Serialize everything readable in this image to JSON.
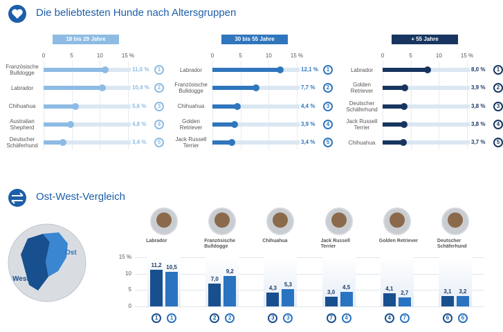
{
  "header": {
    "title": "Die beliebtesten Hunde nach Altersgruppen"
  },
  "chart_data": [
    {
      "type": "hbar",
      "title": "18 bis 29 Jahre",
      "color": "#8dbbe3",
      "categories": [
        "Französische Bulldogge",
        "Labrador",
        "Chihuahua",
        "Australian Shepherd",
        "Deutscher Schäferhund"
      ],
      "values": [
        11.0,
        10.4,
        5.6,
        4.8,
        3.4
      ],
      "value_labels": [
        "11,0 %",
        "10,4 %",
        "5,6 %",
        "4,8 %",
        "3,4 %"
      ],
      "ranks": [
        1,
        2,
        3,
        4,
        5
      ],
      "xlim": [
        0,
        15
      ],
      "xticks": [
        0,
        5,
        10,
        {
          "value": 15,
          "label": "15 %"
        }
      ]
    },
    {
      "type": "hbar",
      "title": "30 bis 55 Jahre",
      "color": "#2f76bd",
      "categories": [
        "Labrador",
        "Französische Bulldogge",
        "Chihuahua",
        "Golden Retriever",
        "Jack Russell Terrier"
      ],
      "values": [
        12.1,
        7.7,
        4.4,
        3.9,
        3.4
      ],
      "value_labels": [
        "12,1 %",
        "7,7 %",
        "4,4 %",
        "3,9 %",
        "3,4 %"
      ],
      "ranks": [
        1,
        2,
        3,
        4,
        5
      ],
      "xlim": [
        0,
        15
      ],
      "xticks": [
        0,
        5,
        10,
        {
          "value": 15,
          "label": "15 %"
        }
      ]
    },
    {
      "type": "hbar",
      "title": "+ 55 Jahre",
      "color": "#17355f",
      "categories": [
        "Labrador",
        "Golden Retriever",
        "Deutscher Schäferhund",
        "Jack Russell Terrier",
        "Chihuahua"
      ],
      "values": [
        8.0,
        3.9,
        3.8,
        3.8,
        3.7
      ],
      "value_labels": [
        "8,0 %",
        "3,9 %",
        "3,8 %",
        "3,8 %",
        "3,7 %"
      ],
      "ranks": [
        1,
        2,
        3,
        4,
        5
      ],
      "xlim": [
        0,
        15
      ],
      "xticks": [
        0,
        5,
        10,
        {
          "value": 15,
          "label": "15 %"
        }
      ]
    },
    {
      "type": "grouped_bar",
      "title": "Ost-West-Vergleich",
      "categories": [
        "Labrador",
        "Französische Bulldogge",
        "Chihuahua",
        "Jack Russell Terrier",
        "Golden Retriever",
        "Deutscher Schäferhund"
      ],
      "series": [
        {
          "name": "West",
          "color": "#184f8e",
          "values": [
            11.2,
            7.0,
            4.3,
            3.0,
            4.1,
            3.1
          ],
          "value_labels": [
            "11,2",
            "7,0",
            "4,3",
            "3,0",
            "4,1",
            "3,1"
          ],
          "ranks": [
            1,
            2,
            3,
            7,
            4,
            6
          ]
        },
        {
          "name": "Ost",
          "color": "#2a73c0",
          "values": [
            10.5,
            9.2,
            5.3,
            4.5,
            2.7,
            3.2
          ],
          "value_labels": [
            "10,5",
            "9,2",
            "5,3",
            "4,5",
            "2,7",
            "3,2"
          ],
          "ranks": [
            1,
            2,
            3,
            4,
            7,
            6
          ]
        }
      ],
      "ylim": [
        0,
        15
      ],
      "yticks": [
        0,
        5,
        10,
        {
          "value": 15,
          "label": "15 %"
        }
      ]
    }
  ]
}
